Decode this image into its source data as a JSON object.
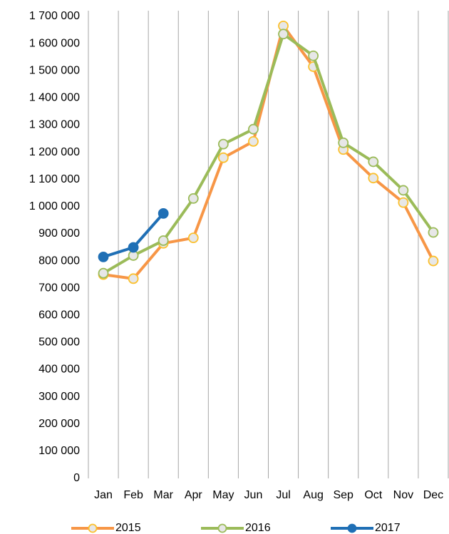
{
  "chart_data": {
    "type": "line",
    "categories": [
      "Jan",
      "Feb",
      "Mar",
      "Apr",
      "May",
      "Jun",
      "Jul",
      "Aug",
      "Sep",
      "Oct",
      "Nov",
      "Dec"
    ],
    "series": [
      {
        "name": "2015",
        "color": "#f79646",
        "values": [
          750000,
          735000,
          865000,
          885000,
          1180000,
          1240000,
          1665000,
          1515000,
          1210000,
          1105000,
          1015000,
          800000
        ]
      },
      {
        "name": "2016",
        "color": "#9bbb59",
        "values": [
          755000,
          820000,
          875000,
          1030000,
          1230000,
          1285000,
          1635000,
          1555000,
          1235000,
          1165000,
          1060000,
          905000
        ]
      },
      {
        "name": "2017",
        "color": "#1f6fb5",
        "values": [
          815000,
          850000,
          975000,
          null,
          null,
          null,
          null,
          null,
          null,
          null,
          null,
          null
        ]
      }
    ],
    "ylim": [
      0,
      1700000
    ],
    "yticks": [
      0,
      {
        "value": 100000,
        "label": "100 000"
      },
      {
        "value": 200000,
        "label": "200 000"
      },
      {
        "value": 300000,
        "label": "300 000"
      },
      {
        "value": 400000,
        "label": "400 000"
      },
      {
        "value": 500000,
        "label": "500 000"
      },
      {
        "value": 600000,
        "label": "600 000"
      },
      {
        "value": 700000,
        "label": "700 000"
      },
      {
        "value": 800000,
        "label": "800 000"
      },
      {
        "value": 900000,
        "label": "900 000"
      },
      {
        "value": 1000000,
        "label": "1 000 000"
      },
      {
        "value": 1100000,
        "label": "1 100 000"
      },
      {
        "value": 1200000,
        "label": "1 200 000"
      },
      {
        "value": 1300000,
        "label": "1 300 000"
      },
      {
        "value": 1400000,
        "label": "1 400 000"
      },
      {
        "value": 1500000,
        "label": "1 500 000"
      },
      {
        "value": 1600000,
        "label": "1 600 000"
      },
      {
        "value": 1700000,
        "label": "1 700 000"
      }
    ],
    "legend": "bottom"
  }
}
